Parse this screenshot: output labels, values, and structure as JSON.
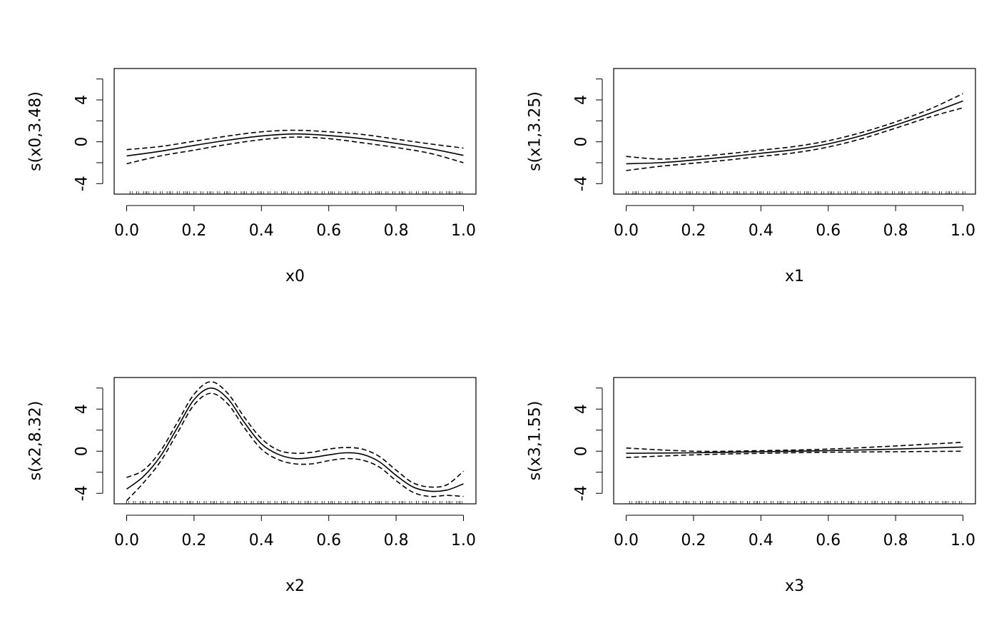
{
  "chart_data": [
    {
      "type": "line",
      "xlabel": "x0",
      "ylabel": "s(x0,3.48)",
      "xlim": [
        0,
        1
      ],
      "ylim": [
        -5,
        7
      ],
      "x_ticks": [
        "0.0",
        "0.2",
        "0.4",
        "0.6",
        "0.8",
        "1.0"
      ],
      "y_ticks": [
        "-4",
        "0",
        "4"
      ],
      "grid": false,
      "series": [
        {
          "role": "estimate",
          "style": "solid",
          "x": [
            0.0,
            0.1,
            0.2,
            0.3,
            0.4,
            0.5,
            0.6,
            0.7,
            0.8,
            0.9,
            1.0
          ],
          "values": [
            -1.35,
            -0.9,
            -0.35,
            0.15,
            0.55,
            0.75,
            0.6,
            0.3,
            -0.15,
            -0.65,
            -1.3
          ]
        },
        {
          "role": "upper-band",
          "style": "dashed",
          "x": [
            0.0,
            0.1,
            0.2,
            0.3,
            0.4,
            0.5,
            0.6,
            0.7,
            0.8,
            0.9,
            1.0
          ],
          "values": [
            -0.75,
            -0.45,
            0.05,
            0.55,
            0.95,
            1.1,
            0.95,
            0.7,
            0.25,
            -0.2,
            -0.6
          ]
        },
        {
          "role": "lower-band",
          "style": "dashed",
          "x": [
            0.0,
            0.1,
            0.2,
            0.3,
            0.4,
            0.5,
            0.6,
            0.7,
            0.8,
            0.9,
            1.0
          ],
          "values": [
            -2.1,
            -1.35,
            -0.8,
            -0.25,
            0.2,
            0.45,
            0.3,
            -0.1,
            -0.55,
            -1.1,
            -2.0
          ]
        }
      ],
      "rug": [
        0.01,
        0.03,
        0.05,
        0.06,
        0.08,
        0.1,
        0.12,
        0.13,
        0.15,
        0.17,
        0.18,
        0.2,
        0.22,
        0.24,
        0.25,
        0.27,
        0.29,
        0.3,
        0.32,
        0.34,
        0.35,
        0.37,
        0.39,
        0.4,
        0.42,
        0.44,
        0.46,
        0.47,
        0.49,
        0.51,
        0.53,
        0.54,
        0.56,
        0.58,
        0.6,
        0.61,
        0.63,
        0.65,
        0.67,
        0.68,
        0.7,
        0.72,
        0.74,
        0.75,
        0.77,
        0.79,
        0.81,
        0.82,
        0.84,
        0.86,
        0.88,
        0.89,
        0.91,
        0.93,
        0.95,
        0.96,
        0.98,
        0.99
      ]
    },
    {
      "type": "line",
      "xlabel": "x1",
      "ylabel": "s(x1,3.25)",
      "xlim": [
        0,
        1
      ],
      "ylim": [
        -5,
        7
      ],
      "x_ticks": [
        "0.0",
        "0.2",
        "0.4",
        "0.6",
        "0.8",
        "1.0"
      ],
      "y_ticks": [
        "-4",
        "0",
        "4"
      ],
      "grid": false,
      "series": [
        {
          "role": "estimate",
          "style": "solid",
          "x": [
            0.0,
            0.1,
            0.2,
            0.3,
            0.4,
            0.5,
            0.6,
            0.7,
            0.8,
            0.9,
            1.0
          ],
          "values": [
            -2.1,
            -2.0,
            -1.75,
            -1.45,
            -1.1,
            -0.75,
            -0.2,
            0.6,
            1.6,
            2.7,
            3.9
          ]
        },
        {
          "role": "upper-band",
          "style": "dashed",
          "x": [
            0.0,
            0.1,
            0.2,
            0.3,
            0.4,
            0.5,
            0.6,
            0.7,
            0.8,
            0.9,
            1.0
          ],
          "values": [
            -1.4,
            -1.65,
            -1.45,
            -1.15,
            -0.8,
            -0.45,
            0.1,
            0.9,
            1.9,
            3.1,
            4.6
          ]
        },
        {
          "role": "lower-band",
          "style": "dashed",
          "x": [
            0.0,
            0.1,
            0.2,
            0.3,
            0.4,
            0.5,
            0.6,
            0.7,
            0.8,
            0.9,
            1.0
          ],
          "values": [
            -2.75,
            -2.35,
            -2.05,
            -1.75,
            -1.4,
            -1.05,
            -0.5,
            0.3,
            1.3,
            2.35,
            3.25
          ]
        }
      ],
      "rug": [
        0.0,
        0.02,
        0.03,
        0.05,
        0.07,
        0.09,
        0.1,
        0.12,
        0.14,
        0.16,
        0.18,
        0.19,
        0.21,
        0.23,
        0.25,
        0.26,
        0.28,
        0.3,
        0.32,
        0.33,
        0.35,
        0.37,
        0.39,
        0.4,
        0.42,
        0.44,
        0.46,
        0.47,
        0.49,
        0.51,
        0.53,
        0.54,
        0.56,
        0.58,
        0.6,
        0.61,
        0.63,
        0.65,
        0.67,
        0.68,
        0.7,
        0.72,
        0.74,
        0.75,
        0.77,
        0.79,
        0.81,
        0.82,
        0.84,
        0.86,
        0.88,
        0.89,
        0.91,
        0.93,
        0.95,
        0.96,
        0.98,
        1.0
      ]
    },
    {
      "type": "line",
      "xlabel": "x2",
      "ylabel": "s(x2,8.32)",
      "xlim": [
        0,
        1
      ],
      "ylim": [
        -5,
        7
      ],
      "x_ticks": [
        "0.0",
        "0.2",
        "0.4",
        "0.6",
        "0.8",
        "1.0"
      ],
      "y_ticks": [
        "-4",
        "0",
        "4"
      ],
      "grid": false,
      "series": [
        {
          "role": "estimate",
          "style": "solid",
          "x": [
            0.0,
            0.05,
            0.1,
            0.15,
            0.2,
            0.25,
            0.3,
            0.35,
            0.4,
            0.45,
            0.5,
            0.55,
            0.6,
            0.65,
            0.7,
            0.75,
            0.8,
            0.85,
            0.9,
            0.95,
            1.0
          ],
          "values": [
            -3.6,
            -2.4,
            -0.5,
            2.2,
            4.9,
            6.0,
            5.0,
            2.7,
            0.7,
            -0.3,
            -0.7,
            -0.6,
            -0.35,
            -0.15,
            -0.3,
            -1.0,
            -2.3,
            -3.4,
            -3.8,
            -3.7,
            -3.1
          ]
        },
        {
          "role": "upper-band",
          "style": "dashed",
          "x": [
            0.0,
            0.05,
            0.1,
            0.15,
            0.2,
            0.25,
            0.3,
            0.35,
            0.4,
            0.45,
            0.5,
            0.55,
            0.6,
            0.65,
            0.7,
            0.75,
            0.8,
            0.85,
            0.9,
            0.95,
            1.0
          ],
          "values": [
            -2.5,
            -1.8,
            0.0,
            2.7,
            5.4,
            6.6,
            5.5,
            3.2,
            1.2,
            0.1,
            -0.2,
            -0.1,
            0.2,
            0.35,
            0.2,
            -0.5,
            -1.8,
            -3.0,
            -3.4,
            -3.2,
            -1.9
          ]
        },
        {
          "role": "lower-band",
          "style": "dashed",
          "x": [
            0.0,
            0.05,
            0.1,
            0.15,
            0.2,
            0.25,
            0.3,
            0.35,
            0.4,
            0.45,
            0.5,
            0.55,
            0.6,
            0.65,
            0.7,
            0.75,
            0.8,
            0.85,
            0.9,
            0.95,
            1.0
          ],
          "values": [
            -4.7,
            -3.0,
            -1.0,
            1.7,
            4.4,
            5.5,
            4.5,
            2.2,
            0.2,
            -0.8,
            -1.2,
            -1.2,
            -0.9,
            -0.7,
            -0.85,
            -1.5,
            -2.8,
            -3.9,
            -4.3,
            -4.2,
            -4.3
          ]
        }
      ],
      "rug": [
        0.0,
        0.02,
        0.04,
        0.05,
        0.07,
        0.09,
        0.11,
        0.12,
        0.14,
        0.16,
        0.18,
        0.19,
        0.21,
        0.23,
        0.25,
        0.26,
        0.28,
        0.3,
        0.32,
        0.33,
        0.35,
        0.37,
        0.39,
        0.4,
        0.42,
        0.44,
        0.46,
        0.47,
        0.49,
        0.51,
        0.53,
        0.54,
        0.56,
        0.58,
        0.6,
        0.61,
        0.63,
        0.65,
        0.67,
        0.68,
        0.7,
        0.72,
        0.74,
        0.75,
        0.77,
        0.79,
        0.81,
        0.82,
        0.84,
        0.86,
        0.88,
        0.89,
        0.91,
        0.93,
        0.95,
        0.96,
        0.98,
        0.99
      ]
    },
    {
      "type": "line",
      "xlabel": "x3",
      "ylabel": "s(x3,1.55)",
      "xlim": [
        0,
        1
      ],
      "ylim": [
        -5,
        7
      ],
      "x_ticks": [
        "0.0",
        "0.2",
        "0.4",
        "0.6",
        "0.8",
        "1.0"
      ],
      "y_ticks": [
        "-4",
        "0",
        "4"
      ],
      "grid": false,
      "series": [
        {
          "role": "estimate",
          "style": "solid",
          "x": [
            0.0,
            0.2,
            0.4,
            0.6,
            0.8,
            1.0
          ],
          "values": [
            -0.2,
            -0.15,
            -0.05,
            0.05,
            0.2,
            0.4
          ]
        },
        {
          "role": "upper-band",
          "style": "dashed",
          "x": [
            0.0,
            0.2,
            0.4,
            0.6,
            0.8,
            1.0
          ],
          "values": [
            0.3,
            0.0,
            0.05,
            0.2,
            0.5,
            0.85
          ]
        },
        {
          "role": "lower-band",
          "style": "dashed",
          "x": [
            0.0,
            0.2,
            0.4,
            0.6,
            0.8,
            1.0
          ],
          "values": [
            -0.6,
            -0.35,
            -0.2,
            -0.1,
            -0.05,
            0.0
          ]
        }
      ],
      "rug": [
        0.01,
        0.03,
        0.04,
        0.06,
        0.08,
        0.1,
        0.11,
        0.13,
        0.15,
        0.17,
        0.18,
        0.2,
        0.22,
        0.24,
        0.25,
        0.27,
        0.29,
        0.31,
        0.32,
        0.34,
        0.36,
        0.38,
        0.39,
        0.41,
        0.43,
        0.45,
        0.46,
        0.48,
        0.5,
        0.52,
        0.53,
        0.55,
        0.57,
        0.59,
        0.6,
        0.62,
        0.64,
        0.66,
        0.67,
        0.69,
        0.71,
        0.73,
        0.74,
        0.76,
        0.78,
        0.8,
        0.81,
        0.83,
        0.85,
        0.87,
        0.88,
        0.9,
        0.92,
        0.94,
        0.95,
        0.97,
        0.99
      ]
    }
  ]
}
